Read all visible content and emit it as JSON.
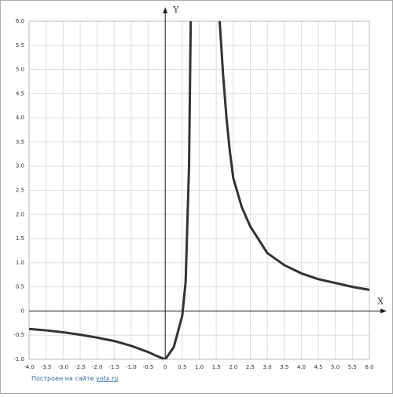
{
  "chart_data": {
    "type": "line",
    "x_label": "X",
    "y_label": "Y",
    "x": [
      -4,
      -3.5,
      -3,
      -2.5,
      -2,
      -1.5,
      -1,
      -0.5,
      -0.25,
      0,
      0.25,
      0.5,
      0.6,
      0.7,
      0.75,
      1.2,
      1.6,
      1.7,
      1.8,
      1.9,
      2,
      2.25,
      2.5,
      3,
      3.5,
      4,
      4.5,
      5,
      5.5,
      6
    ],
    "series": [
      {
        "color": "#333333",
        "values": [
          -0.37,
          -0.4,
          -0.44,
          -0.49,
          -0.55,
          -0.62,
          -0.72,
          -0.85,
          -0.93,
          -1.0,
          -0.75,
          -0.1,
          0.6,
          3.0,
          6.0,
          null,
          6.0,
          4.9,
          4.0,
          3.3,
          2.75,
          2.15,
          1.75,
          1.2,
          0.95,
          0.78,
          0.66,
          0.58,
          0.5,
          0.44
        ]
      }
    ],
    "xlim": [
      -4,
      6
    ],
    "ylim": [
      -1,
      6
    ],
    "xticks": [
      {
        "value": -4,
        "label": "-4.0"
      },
      -3.5,
      {
        "value": -3,
        "label": "-3.0"
      },
      -2.5,
      {
        "value": -2,
        "label": "-2.0"
      },
      -1.5,
      {
        "value": -1,
        "label": "-1.0"
      },
      -0.5,
      0,
      0.5,
      {
        "value": 1,
        "label": "1.0"
      },
      1.5,
      {
        "value": 2,
        "label": "2.0"
      },
      2.5,
      {
        "value": 3,
        "label": "3.0"
      },
      3.5,
      {
        "value": 4,
        "label": "4.0"
      },
      4.5,
      {
        "value": 5,
        "label": "5.0"
      },
      5.5,
      {
        "value": 6,
        "label": "6.0"
      }
    ],
    "yticks": [
      {
        "value": -1,
        "label": "-1.0"
      },
      -0.5,
      0,
      0.5,
      {
        "value": 1,
        "label": "1.0"
      },
      1.5,
      {
        "value": 2,
        "label": "2.0"
      },
      2.5,
      {
        "value": 3,
        "label": "3.0"
      },
      3.5,
      {
        "value": 4,
        "label": "4.0"
      },
      4.5,
      {
        "value": 5,
        "label": "5.0"
      },
      5.5,
      {
        "value": 6,
        "label": "6.0"
      }
    ],
    "grid": true,
    "credit_text": "Построен на сайте",
    "credit_link": "yotx.ru"
  }
}
